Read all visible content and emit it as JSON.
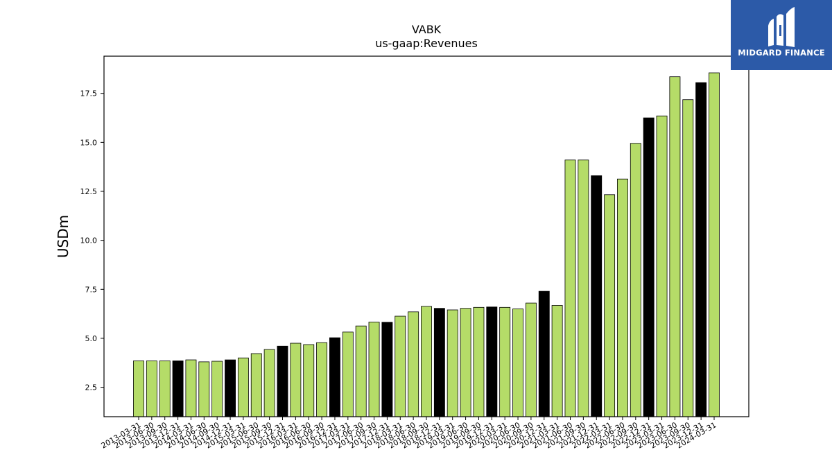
{
  "brand": {
    "name": "MIDGARD FINANCE",
    "logo_icon": "midgard-m-icon",
    "bg_color": "#2c5aa8"
  },
  "chart_data": {
    "type": "bar",
    "title": "VABK",
    "subtitle": "us-gaap:Revenues",
    "xlabel": "",
    "ylabel": "USDm",
    "ylim": [
      1.0,
      19.4
    ],
    "yticks": [
      "2.5",
      "5.0",
      "7.5",
      "10.0",
      "12.5",
      "15.0",
      "17.5"
    ],
    "grid": false,
    "colors": {
      "quarter": "#b5dc68",
      "year_end": "#000000",
      "edge": "#000000"
    },
    "categories": [
      "2013-03-31",
      "2013-06-30",
      "2013-09-30",
      "2013-12-31",
      "2014-03-31",
      "2014-06-30",
      "2014-09-30",
      "2014-12-31",
      "2015-03-31",
      "2015-06-30",
      "2015-09-30",
      "2015-12-31",
      "2016-03-31",
      "2016-06-30",
      "2016-09-30",
      "2016-12-31",
      "2017-03-31",
      "2017-06-30",
      "2017-09-30",
      "2017-12-31",
      "2018-03-31",
      "2018-06-30",
      "2018-09-30",
      "2018-12-31",
      "2019-03-31",
      "2019-06-30",
      "2019-09-30",
      "2019-12-31",
      "2020-03-31",
      "2020-06-30",
      "2020-09-30",
      "2020-12-31",
      "2021-03-31",
      "2021-06-30",
      "2021-09-30",
      "2021-12-31",
      "2022-03-31",
      "2022-06-30",
      "2022-09-30",
      "2022-12-31",
      "2023-03-31",
      "2023-06-30",
      "2023-09-30",
      "2023-12-31",
      "2024-03-31"
    ],
    "values": [
      3.85,
      3.85,
      3.85,
      3.85,
      3.9,
      3.8,
      3.83,
      3.9,
      4.0,
      4.22,
      4.43,
      4.6,
      4.75,
      4.68,
      4.78,
      5.03,
      5.32,
      5.63,
      5.83,
      5.82,
      6.13,
      6.35,
      6.63,
      6.53,
      6.45,
      6.53,
      6.58,
      6.6,
      6.58,
      6.5,
      6.8,
      7.4,
      6.68,
      14.1,
      14.1,
      13.3,
      12.33,
      13.13,
      14.95,
      16.25,
      16.35,
      18.35,
      17.18,
      18.05,
      18.55
    ],
    "highlight": [
      false,
      false,
      false,
      true,
      false,
      false,
      false,
      true,
      false,
      false,
      false,
      true,
      false,
      false,
      false,
      true,
      false,
      false,
      false,
      true,
      false,
      false,
      false,
      true,
      false,
      false,
      false,
      true,
      false,
      false,
      false,
      true,
      false,
      false,
      false,
      true,
      false,
      false,
      false,
      true,
      false,
      false,
      false,
      true,
      false
    ]
  }
}
